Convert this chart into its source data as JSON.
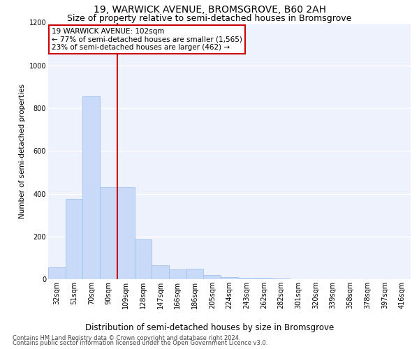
{
  "title": "19, WARWICK AVENUE, BROMSGROVE, B60 2AH",
  "subtitle": "Size of property relative to semi-detached houses in Bromsgrove",
  "xlabel": "Distribution of semi-detached houses by size in Bromsgrove",
  "ylabel": "Number of semi-detached properties",
  "footnote1": "Contains HM Land Registry data © Crown copyright and database right 2024.",
  "footnote2": "Contains public sector information licensed under the Open Government Licence v3.0.",
  "categories": [
    "32sqm",
    "51sqm",
    "70sqm",
    "90sqm",
    "109sqm",
    "128sqm",
    "147sqm",
    "166sqm",
    "186sqm",
    "205sqm",
    "224sqm",
    "243sqm",
    "262sqm",
    "282sqm",
    "301sqm",
    "320sqm",
    "339sqm",
    "358sqm",
    "378sqm",
    "397sqm",
    "416sqm"
  ],
  "values": [
    55,
    375,
    855,
    430,
    430,
    185,
    65,
    45,
    50,
    20,
    10,
    5,
    5,
    2,
    1,
    0,
    0,
    0,
    0,
    0,
    0
  ],
  "bar_color": "#c9daf8",
  "bar_edge_color": "#a4c2f4",
  "vline_color": "#cc0000",
  "vline_label": "19 WARWICK AVENUE: 102sqm",
  "annotation_smaller": "← 77% of semi-detached houses are smaller (1,565)",
  "annotation_larger": "23% of semi-detached houses are larger (462) →",
  "ylim": [
    0,
    1200
  ],
  "yticks": [
    0,
    200,
    400,
    600,
    800,
    1000,
    1200
  ],
  "bg_color": "#eef2fc",
  "annotation_box_color": "#ffffff",
  "annotation_box_edge": "#cc0000",
  "title_fontsize": 10,
  "subtitle_fontsize": 9,
  "xlabel_fontsize": 8.5,
  "ylabel_fontsize": 7.5,
  "tick_fontsize": 7,
  "footnote_fontsize": 6,
  "annot_fontsize": 7.5
}
